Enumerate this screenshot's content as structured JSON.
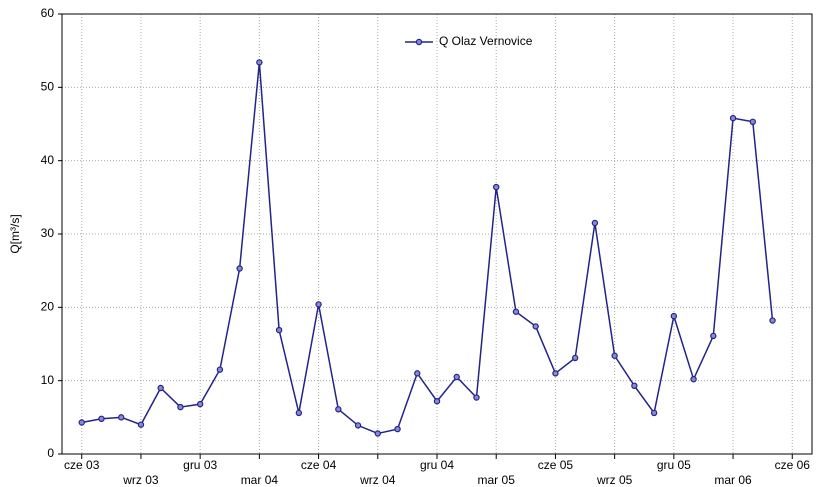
{
  "chart_data": {
    "type": "line",
    "y_label": "Q[m³/s]",
    "x": [
      0,
      1,
      2,
      3,
      4,
      5,
      6,
      7,
      8,
      9,
      10,
      11,
      12,
      13,
      14,
      15,
      16,
      17,
      18,
      19,
      20,
      21,
      22,
      23,
      24,
      25,
      26,
      27,
      28,
      29,
      30,
      31,
      32,
      33,
      34,
      35
    ],
    "xlim": [
      -1,
      37
    ],
    "xticks": [
      {
        "value": 0,
        "label": "cze 03"
      },
      {
        "value": 3,
        "label": "wrz 03"
      },
      {
        "value": 6,
        "label": "gru 03"
      },
      {
        "value": 9,
        "label": "mar 04"
      },
      {
        "value": 12,
        "label": "cze 04"
      },
      {
        "value": 15,
        "label": "wrz 04"
      },
      {
        "value": 18,
        "label": "gru 04"
      },
      {
        "value": 21,
        "label": "mar 05"
      },
      {
        "value": 24,
        "label": "cze 05"
      },
      {
        "value": 27,
        "label": "wrz 05"
      },
      {
        "value": 30,
        "label": "gru 05"
      },
      {
        "value": 33,
        "label": "mar 06"
      },
      {
        "value": 36,
        "label": "cze 06"
      }
    ],
    "ylim": [
      0,
      60
    ],
    "yticks": [
      0,
      10,
      20,
      30,
      40,
      50,
      60
    ],
    "grid": true,
    "legend": "top",
    "series": [
      {
        "name": "Q Olaz Vernovice",
        "color": "#23238a",
        "values": [
          4.3,
          4.8,
          5.0,
          4.0,
          9.0,
          6.4,
          6.8,
          11.5,
          25.3,
          53.4,
          16.9,
          5.6,
          20.4,
          6.1,
          3.9,
          2.8,
          3.4,
          11.0,
          7.2,
          10.5,
          7.7,
          36.4,
          19.4,
          17.4,
          11.0,
          13.1,
          31.5,
          13.4,
          9.3,
          5.6,
          18.8,
          10.2,
          16.1,
          45.8,
          45.3,
          18.2
        ]
      }
    ]
  }
}
